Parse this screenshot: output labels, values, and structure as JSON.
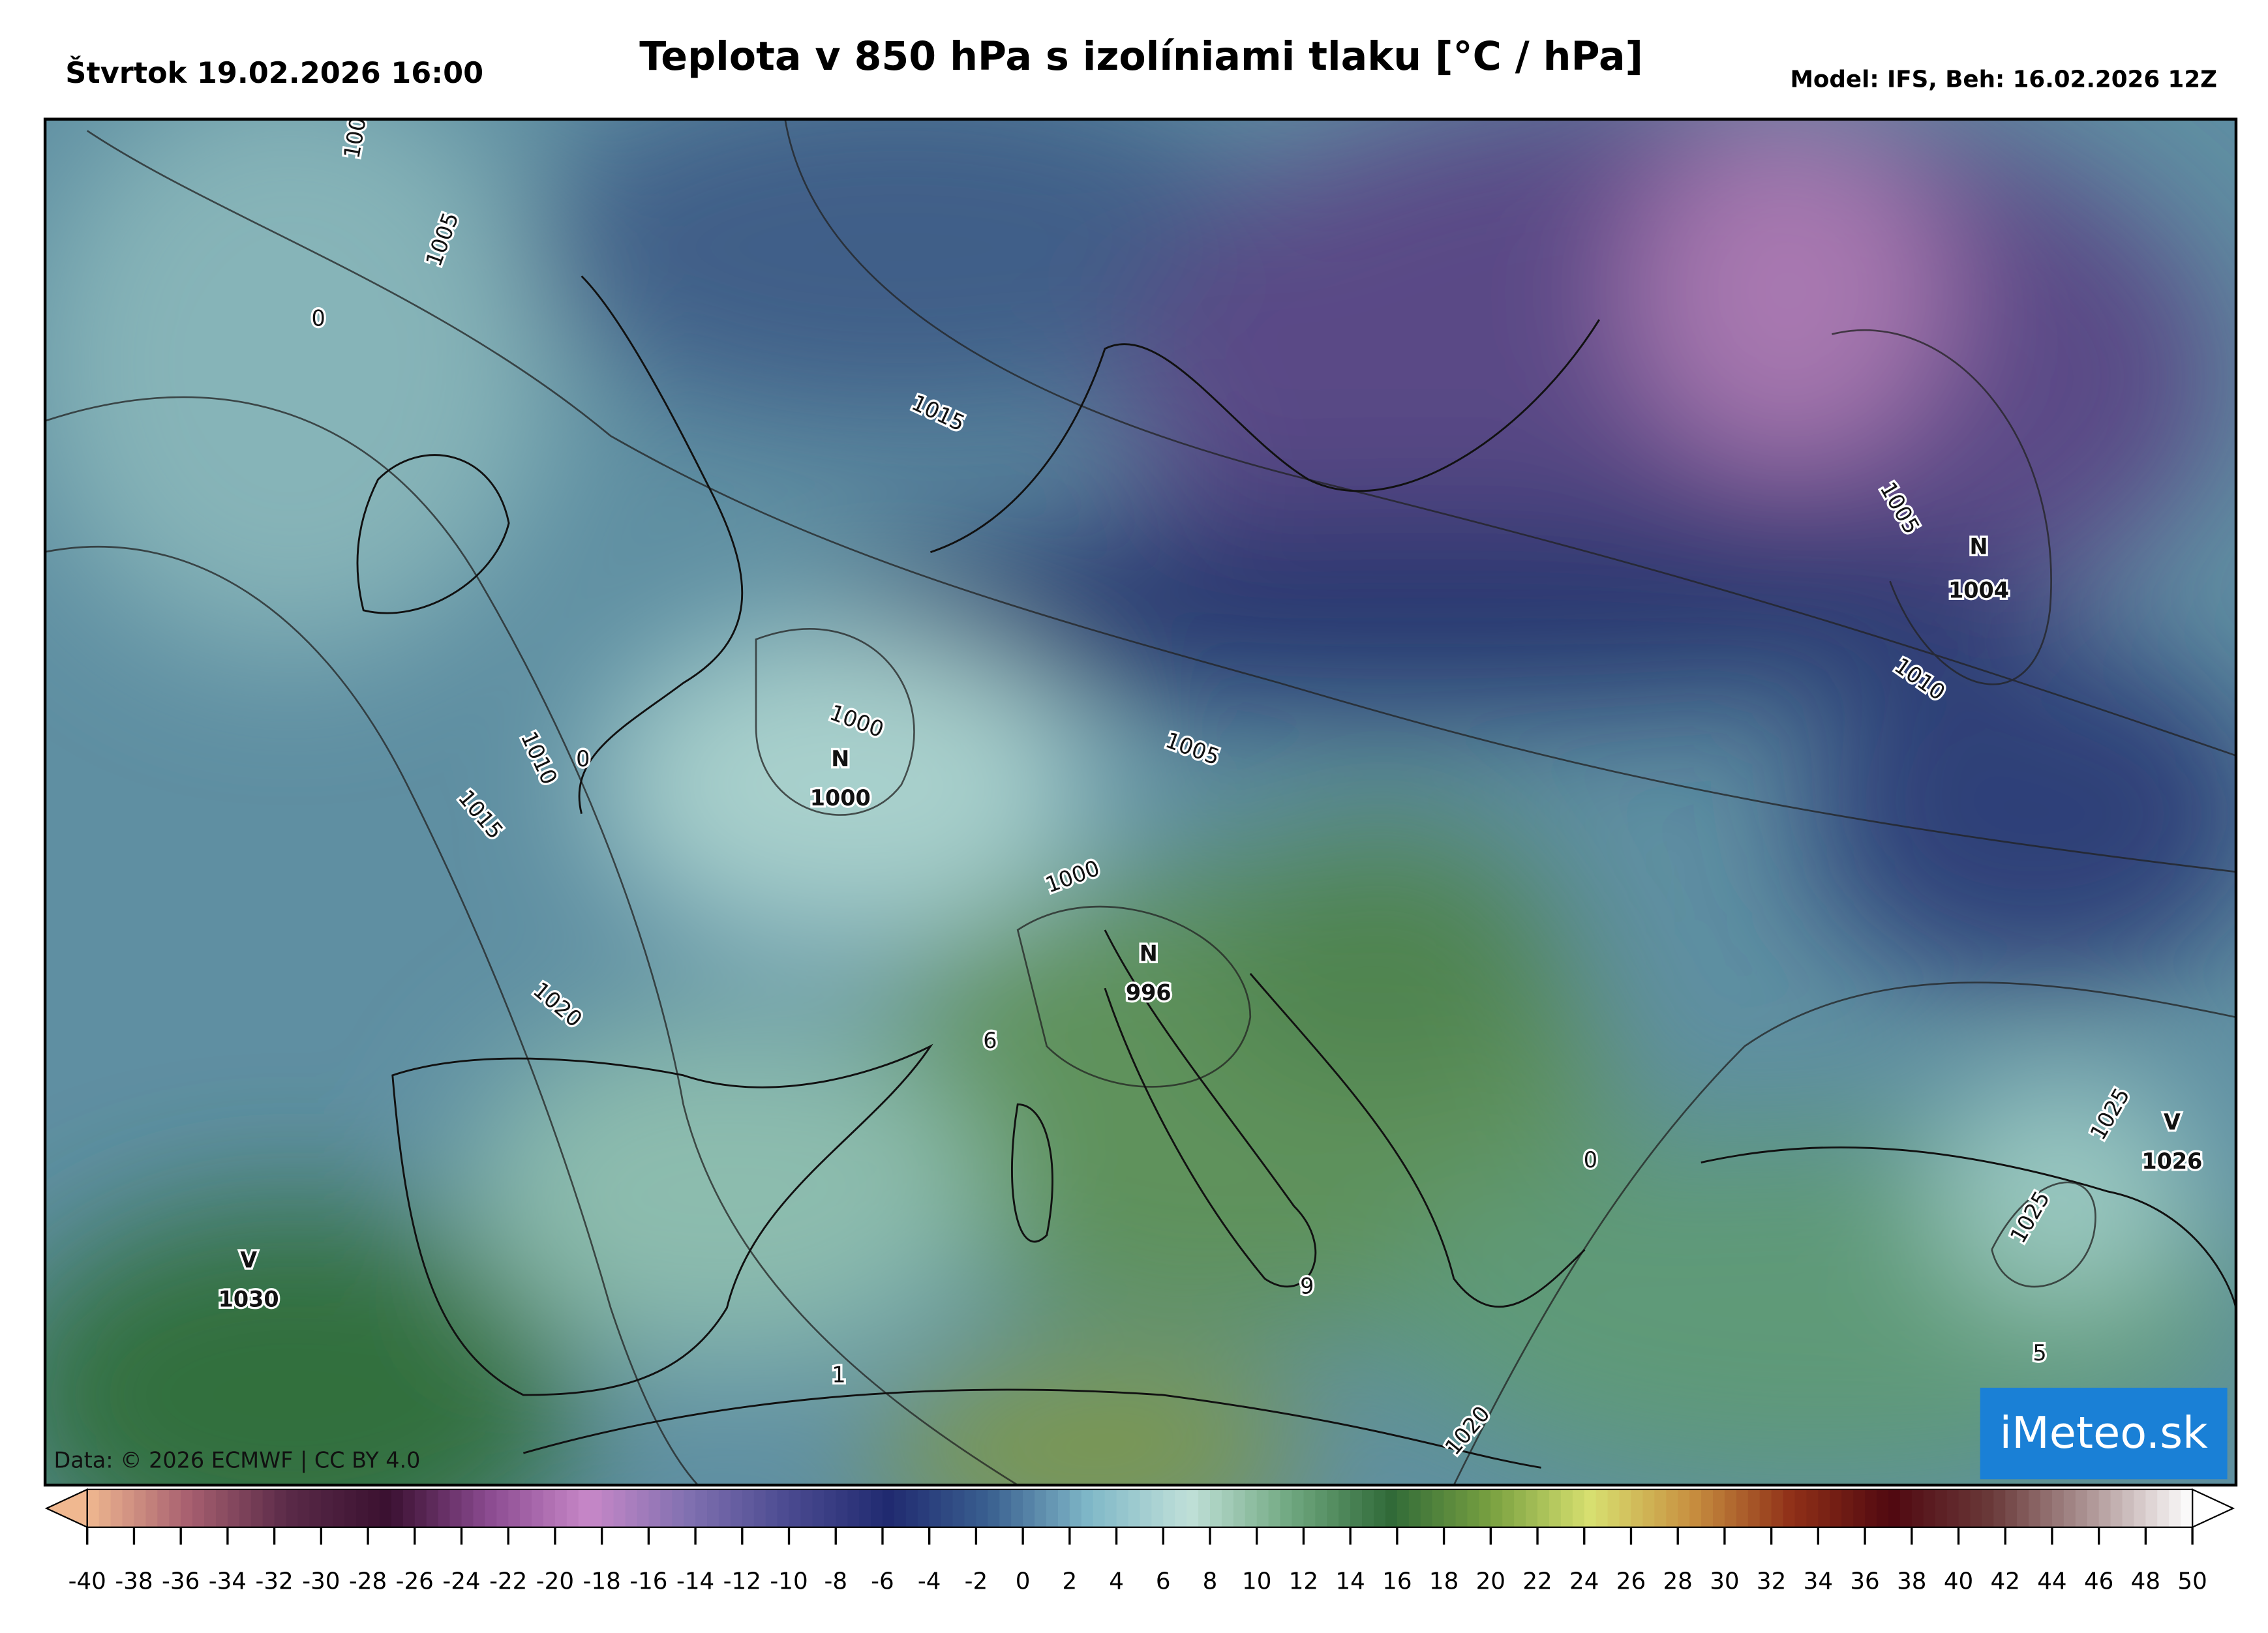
{
  "header": {
    "valid_time": "Štvrtok 19.02.2026 16:00",
    "title": "Teplota v 850 hPa s izolíniami tlaku [°C / hPa]",
    "model": "Model: IFS, Beh: 16.02.2026 12Z"
  },
  "map": {
    "pressure_centers": [
      {
        "type": "N",
        "value": "1000"
      },
      {
        "type": "N",
        "value": "996"
      },
      {
        "type": "N",
        "value": "1004"
      },
      {
        "type": "V",
        "value": "1030"
      },
      {
        "type": "V",
        "value": "1026"
      }
    ],
    "contour_labels": [
      "100",
      "1005",
      "0",
      "1015",
      "1010",
      "0",
      "1015",
      "1020",
      "1000",
      "1000",
      "1005",
      "6",
      "1005",
      "1010",
      "1025",
      "1025",
      "0",
      "9",
      "1",
      "1020",
      "5"
    ],
    "credit": "Data: © 2026 ECMWF | CC BY 4.0",
    "logo": "iMeteo.sk"
  },
  "colorbar": {
    "ticks": [
      -40,
      -38,
      -36,
      -34,
      -32,
      -30,
      -28,
      -26,
      -24,
      -22,
      -20,
      -18,
      -16,
      -14,
      -12,
      -10,
      -8,
      -6,
      -4,
      -2,
      0,
      2,
      4,
      6,
      8,
      10,
      12,
      14,
      16,
      18,
      20,
      22,
      24,
      26,
      28,
      30,
      32,
      34,
      36,
      38,
      40,
      42,
      44,
      46,
      48,
      50
    ],
    "colors": [
      "#f0b890",
      "#a86070",
      "#5a2a48",
      "#3a1030",
      "#8a4a90",
      "#c888c8",
      "#8070b0",
      "#4a4a90",
      "#202a70",
      "#3a6090",
      "#80b8c8",
      "#c0e0d8",
      "#70a880",
      "#306a38",
      "#78a040",
      "#d8e070",
      "#c89040",
      "#903018",
      "#500810",
      "#6a3a3a",
      "#b09898",
      "#ffffff"
    ]
  }
}
